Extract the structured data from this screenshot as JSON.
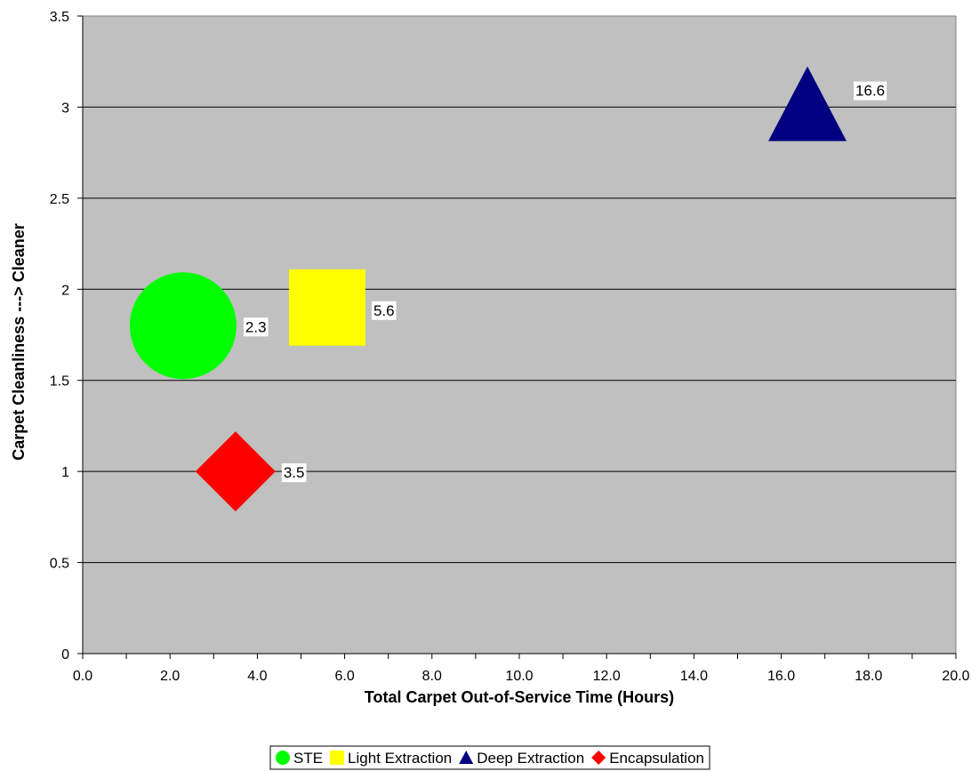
{
  "chart_data": {
    "type": "bubble",
    "title": "",
    "xlabel": "Total Carpet Out-of-Service Time (Hours)",
    "ylabel": "Carpet Cleanliness   ---> Cleaner",
    "xlim": [
      0,
      20
    ],
    "ylim": [
      0,
      3.5
    ],
    "x_ticks": [
      "0.0",
      "2.0",
      "4.0",
      "6.0",
      "8.0",
      "10.0",
      "12.0",
      "14.0",
      "16.0",
      "18.0",
      "20.0"
    ],
    "y_ticks": [
      "0",
      "0.5",
      "1",
      "1.5",
      "2",
      "2.5",
      "3",
      "3.5"
    ],
    "grid": "horizontal",
    "plot_background": "#c0c0c0",
    "legend_position": "bottom",
    "series": [
      {
        "name": "STE",
        "marker": "circle",
        "color": "#00ff00",
        "x": 2.3,
        "y": 1.8,
        "label": "2.3"
      },
      {
        "name": "Light Extraction",
        "marker": "square",
        "color": "#ffff00",
        "x": 5.6,
        "y": 1.9,
        "label": "5.6"
      },
      {
        "name": "Deep Extraction",
        "marker": "triangle",
        "color": "#000080",
        "x": 16.6,
        "y": 2.95,
        "label": "16.6"
      },
      {
        "name": "Encapsulation",
        "marker": "diamond",
        "color": "#ff0000",
        "x": 3.5,
        "y": 1.0,
        "label": "3.5"
      }
    ]
  }
}
